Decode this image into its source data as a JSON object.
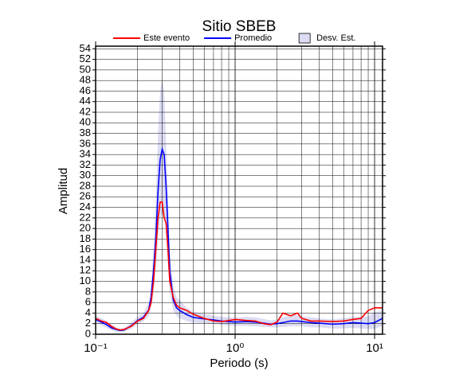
{
  "chart_data": {
    "type": "line",
    "title": "Sitio SBEB",
    "xlabel": "Periodo (s)",
    "ylabel": "Amplitud",
    "log_x": true,
    "grid": true,
    "legend": "top",
    "xlim": [
      0.1,
      11.4
    ],
    "ylim": [
      0,
      54.5
    ],
    "xticks": [
      {
        "value": 0.1,
        "label": "10⁻¹"
      },
      {
        "value": 1,
        "label": "10⁰"
      },
      {
        "value": 10,
        "label": "10¹"
      }
    ],
    "xgrid_minor": [
      0.2,
      0.3,
      0.4,
      0.5,
      0.6,
      0.7,
      0.8,
      0.9,
      2,
      3,
      4,
      5,
      6,
      7,
      8,
      9
    ],
    "yticks": [
      0,
      2,
      4,
      6,
      8,
      10,
      12,
      14,
      16,
      18,
      20,
      22,
      24,
      26,
      28,
      30,
      32,
      34,
      36,
      38,
      40,
      42,
      44,
      46,
      48,
      50,
      52,
      54
    ],
    "x": [
      0.1,
      0.11,
      0.12,
      0.13,
      0.14,
      0.15,
      0.16,
      0.18,
      0.2,
      0.22,
      0.24,
      0.25,
      0.26,
      0.27,
      0.28,
      0.29,
      0.3,
      0.31,
      0.32,
      0.33,
      0.34,
      0.36,
      0.38,
      0.4,
      0.45,
      0.5,
      0.6,
      0.7,
      0.8,
      0.9,
      1.0,
      1.2,
      1.4,
      1.6,
      1.8,
      2.0,
      2.2,
      2.5,
      2.8,
      3.0,
      3.5,
      4.0,
      5.0,
      6.0,
      7.0,
      8.0,
      9.0,
      10,
      11.4
    ],
    "series": [
      {
        "name": "Este evento",
        "color": "#ff0000",
        "values": [
          3,
          2.5,
          2.2,
          1.5,
          1.0,
          0.8,
          0.9,
          1.5,
          2.5,
          3.0,
          4.5,
          6,
          10,
          16,
          22,
          25,
          25,
          22,
          21,
          16,
          10,
          7,
          5.5,
          5,
          4.5,
          3.8,
          3,
          2.5,
          2.4,
          2.6,
          2.8,
          2.6,
          2.5,
          2.0,
          1.8,
          2.3,
          4.0,
          3.5,
          4.0,
          3.0,
          2.5,
          2.5,
          2.4,
          2.5,
          2.8,
          3.0,
          4.5,
          5,
          5
        ]
      },
      {
        "name": "Promedio",
        "color": "#0000ff",
        "values": [
          2.8,
          2.3,
          1.8,
          1.2,
          0.9,
          0.7,
          0.8,
          1.6,
          2.6,
          3.2,
          4.6,
          7,
          12,
          18,
          27,
          33,
          35,
          34,
          28,
          20,
          12,
          6.5,
          5,
          4.5,
          3.7,
          3.2,
          2.9,
          2.7,
          2.5,
          2.4,
          2.3,
          2.4,
          2.3,
          2.1,
          1.9,
          2.0,
          2.2,
          2.5,
          2.5,
          2.4,
          2.2,
          2.1,
          1.9,
          2.0,
          2.2,
          2.1,
          2.0,
          2.2,
          3
        ]
      },
      {
        "name": "Desv. Est.",
        "color": "#dcdcf4",
        "upper": [
          3.5,
          3,
          2.5,
          1.8,
          1.3,
          1.1,
          1.2,
          2.2,
          3.3,
          4,
          5.8,
          9,
          16,
          25,
          38,
          46,
          48.5,
          46,
          36,
          26,
          16,
          9,
          7,
          6.5,
          5,
          4.3,
          3.8,
          3.5,
          3.3,
          3.2,
          3.1,
          3.3,
          3.2,
          2.9,
          2.6,
          2.8,
          3.2,
          3.6,
          3.6,
          3.4,
          3.2,
          3.0,
          2.8,
          3.0,
          3.3,
          3.3,
          3.4,
          4.2,
          4.5
        ],
        "lower": [
          2.1,
          1.7,
          1.2,
          0.7,
          0.5,
          0.4,
          0.5,
          1.0,
          1.9,
          2.4,
          3.4,
          5,
          8,
          12,
          18,
          22,
          23,
          22,
          20,
          14,
          8,
          4.5,
          3.5,
          3,
          2.5,
          2.2,
          2.1,
          2,
          1.8,
          1.7,
          1.6,
          1.6,
          1.5,
          1.4,
          1.3,
          1.3,
          1.4,
          1.5,
          1.5,
          1.5,
          1.3,
          1.3,
          1.1,
          1.1,
          1.2,
          1.1,
          1.0,
          1.0,
          1.6
        ]
      }
    ]
  }
}
